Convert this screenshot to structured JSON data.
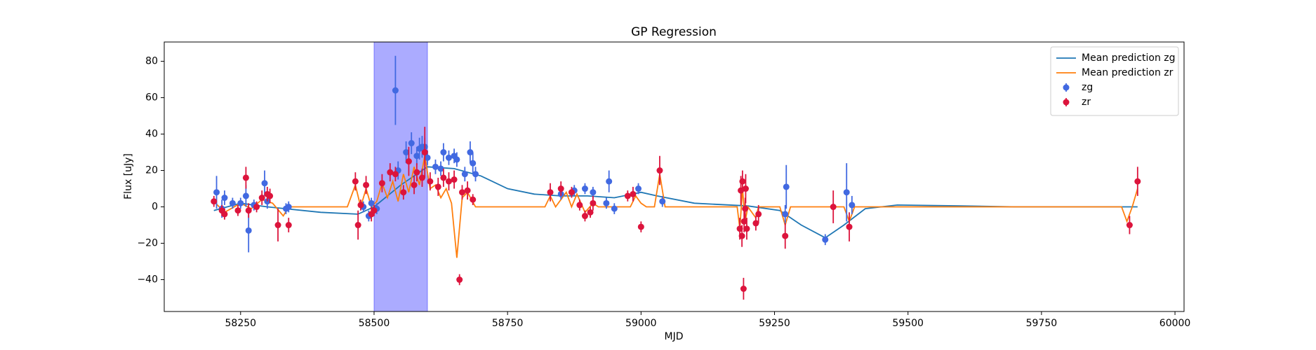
{
  "chart_data": {
    "type": "line",
    "title": "GP Regression",
    "xlabel": "MJD",
    "ylabel": "Flux [uJy]",
    "xlim": [
      58107,
      60017
    ],
    "ylim": [
      -57.5,
      90.6
    ],
    "xticks": [
      58250,
      58500,
      58750,
      59000,
      59250,
      59500,
      59750,
      60000
    ],
    "yticks": [
      {
        "value": -40,
        "label": "−40"
      },
      {
        "value": -20,
        "label": "−20"
      },
      0,
      20,
      40,
      60,
      80
    ],
    "legend": "upper right",
    "shade": [
      58500,
      58600
    ],
    "shade_color": "#0000ff",
    "series": [
      {
        "name": "Mean prediction zg",
        "kind": "line",
        "color": "#1f77b4",
        "x": [
          58200,
          58250,
          58300,
          58400,
          58470,
          58500,
          58550,
          58600,
          58650,
          58700,
          58750,
          58800,
          58850,
          58900,
          58950,
          59000,
          59030,
          59100,
          59200,
          59260,
          59300,
          59345,
          59380,
          59420,
          59480,
          59600,
          59700,
          59930
        ],
        "values": [
          -2,
          2,
          0,
          -3,
          -4,
          0,
          12,
          22,
          21,
          17,
          10,
          7,
          6,
          6,
          5,
          8,
          6,
          2,
          0.5,
          -2,
          -10,
          -17,
          -10,
          -1,
          1,
          0.5,
          0,
          0
        ]
      },
      {
        "name": "Mean prediction zr",
        "kind": "line",
        "color": "#ff7f0e",
        "x": [
          58200,
          58220,
          58250,
          58270,
          58290,
          58310,
          58330,
          58340,
          58450,
          58465,
          58475,
          58485,
          58495,
          58505,
          58515,
          58525,
          58535,
          58545,
          58555,
          58565,
          58575,
          58585,
          58595,
          58605,
          58615,
          58625,
          58635,
          58645,
          58655,
          58665,
          58675,
          58690,
          58820,
          58830,
          58840,
          58860,
          58870,
          58880,
          58895,
          58910,
          58920,
          58980,
          58990,
          59000,
          59010,
          59025,
          59035,
          59045,
          59180,
          59185,
          59190,
          59195,
          59200,
          59215,
          59220,
          59260,
          59270,
          59280,
          59380,
          59390,
          59400,
          59900,
          59910,
          59920,
          59930
        ],
        "values": [
          3,
          -3,
          2,
          -1,
          4,
          2,
          -5,
          0,
          0,
          12,
          0,
          10,
          0,
          3,
          13,
          5,
          14,
          3,
          18,
          8,
          22,
          12,
          28,
          10,
          12,
          5,
          10,
          2,
          -28,
          5,
          8,
          0,
          0,
          6,
          0,
          8,
          0,
          7,
          -3,
          2,
          0,
          0,
          6,
          2,
          0,
          0,
          18,
          0,
          0,
          -12,
          10,
          -8,
          0,
          -6,
          0,
          0,
          -10,
          0,
          0,
          -8,
          0,
          0,
          -8,
          0,
          10
        ]
      },
      {
        "name": "zg",
        "kind": "errorbar",
        "color": "#4169e1",
        "x": [
          58205,
          58215,
          58220,
          58235,
          58250,
          58260,
          58265,
          58275,
          58295,
          58300,
          58335,
          58340,
          58480,
          58490,
          58495,
          58505,
          58540,
          58545,
          58560,
          58570,
          58580,
          58585,
          58590,
          58595,
          58600,
          58615,
          58625,
          58630,
          58640,
          58650,
          58655,
          58670,
          58680,
          58685,
          58690,
          58850,
          58875,
          58895,
          58910,
          58935,
          58940,
          58950,
          58995,
          59040,
          59270,
          59272,
          59345,
          59385,
          59395
        ],
        "values": [
          8,
          -1,
          5,
          2,
          2,
          6,
          -13,
          1,
          13,
          3,
          -1,
          0,
          0,
          -5,
          2,
          -1,
          64,
          20,
          30,
          35,
          28,
          32,
          33,
          33,
          27,
          22,
          21,
          30,
          27,
          28,
          26,
          18,
          30,
          24,
          18,
          7,
          9,
          10,
          8,
          2,
          14,
          -1,
          10,
          3,
          -4,
          11,
          -18,
          8,
          1
        ],
        "errors": [
          9,
          5,
          4,
          3,
          3,
          6,
          12,
          3,
          7,
          4,
          3,
          3,
          3,
          3,
          3,
          3,
          19,
          5,
          6,
          6,
          5,
          6,
          6,
          5,
          4,
          4,
          4,
          5,
          4,
          4,
          4,
          4,
          6,
          6,
          4,
          3,
          3,
          3,
          3,
          3,
          6,
          3,
          3,
          3,
          5,
          12,
          3,
          16,
          5
        ]
      },
      {
        "name": "zr",
        "kind": "errorbar",
        "color": "#dc143c",
        "x": [
          58200,
          58215,
          58220,
          58245,
          58260,
          58265,
          58280,
          58290,
          58300,
          58305,
          58320,
          58340,
          58465,
          58470,
          58475,
          58485,
          58495,
          58500,
          58515,
          58530,
          58540,
          58555,
          58565,
          58575,
          58580,
          58590,
          58595,
          58605,
          58620,
          58630,
          58640,
          58650,
          58660,
          58665,
          58675,
          58685,
          58830,
          58850,
          58870,
          58885,
          58895,
          58905,
          58910,
          58975,
          58985,
          59000,
          59035,
          59185,
          59187,
          59189,
          59190,
          59192,
          59193,
          59195,
          59196,
          59198,
          59215,
          59220,
          59270,
          59360,
          59390,
          59915,
          59930
        ],
        "values": [
          3,
          -2,
          -4,
          -2,
          16,
          -2,
          0,
          5,
          7,
          6,
          -10,
          -10,
          14,
          -10,
          1,
          12,
          -4,
          -2,
          13,
          19,
          18,
          8,
          25,
          12,
          19,
          16,
          30,
          14,
          11,
          16,
          14,
          15,
          -40,
          8,
          9,
          4,
          8,
          10,
          8,
          1,
          -5,
          -3,
          2,
          6,
          7,
          -11,
          20,
          -12,
          9,
          -16,
          14,
          -45,
          -8,
          -1,
          10,
          -12,
          -9,
          -4,
          -16,
          0,
          -11,
          -10,
          14
        ],
        "errors": [
          3,
          3,
          3,
          3,
          6,
          4,
          3,
          4,
          4,
          4,
          9,
          4,
          5,
          8,
          3,
          5,
          4,
          3,
          5,
          5,
          4,
          4,
          8,
          5,
          5,
          5,
          14,
          5,
          5,
          5,
          5,
          5,
          3,
          4,
          5,
          3,
          5,
          4,
          3,
          3,
          3,
          3,
          4,
          3,
          4,
          3,
          8,
          6,
          8,
          6,
          6,
          6,
          6,
          6,
          8,
          6,
          4,
          5,
          7,
          9,
          8,
          5,
          8
        ]
      }
    ]
  }
}
